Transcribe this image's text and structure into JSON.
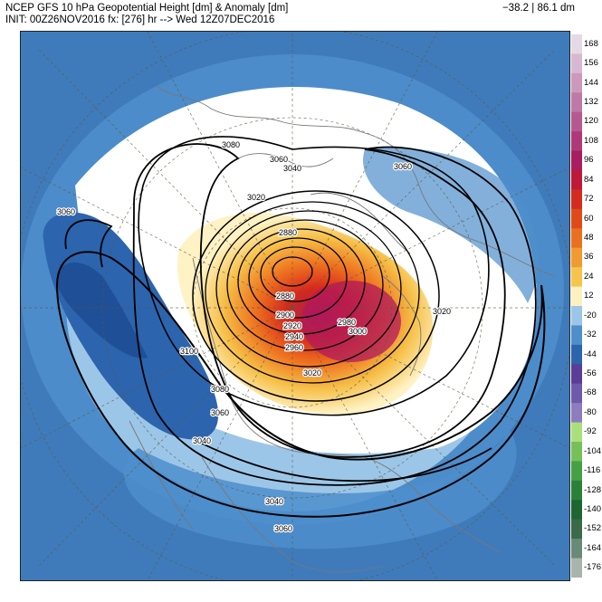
{
  "header": {
    "title": "NCEP GFS 10 hPa Geopotential Height [dm] & Anomaly [dm]",
    "init_line": "INIT: 00Z26NOV2016 fx: [276] hr --> Wed 12Z07DEC2016",
    "stats": "−38.2 | 86.1 dm"
  },
  "colorbar": {
    "labels": [
      "168",
      "156",
      "144",
      "132",
      "120",
      "108",
      "96",
      "84",
      "72",
      "60",
      "48",
      "36",
      "24",
      "12",
      "-20",
      "-32",
      "-44",
      "-56",
      "-68",
      "-80",
      "-92",
      "-104",
      "-116",
      "-128",
      "-140",
      "-152",
      "-164",
      "-176"
    ],
    "colors": [
      "#e4d9e4",
      "#d8b8d0",
      "#cc98bc",
      "#c078a6",
      "#b85890",
      "#b03878",
      "#a81c60",
      "#c01838",
      "#d42a20",
      "#e04a18",
      "#ea7020",
      "#f09a30",
      "#f6c44c",
      "#fff0c0",
      "#9cc6e8",
      "#4e8ecc",
      "#2c64ae",
      "#5a3d96",
      "#6e5aaa",
      "#8e7cc0",
      "#a9e07c",
      "#76c05a",
      "#46a044",
      "#2b8038",
      "#1d6630",
      "#3a6a4a",
      "#6a8a78",
      "#a8b4ae"
    ]
  },
  "contours": {
    "low_center": "2880",
    "labels": [
      "3080",
      "3060",
      "3040",
      "3020",
      "3060",
      "3060",
      "2880",
      "2880",
      "2900",
      "2920",
      "2940",
      "2960",
      "2980",
      "3000",
      "3020",
      "3020",
      "3100",
      "3080",
      "3060",
      "3040",
      "3040",
      "3060"
    ]
  }
}
